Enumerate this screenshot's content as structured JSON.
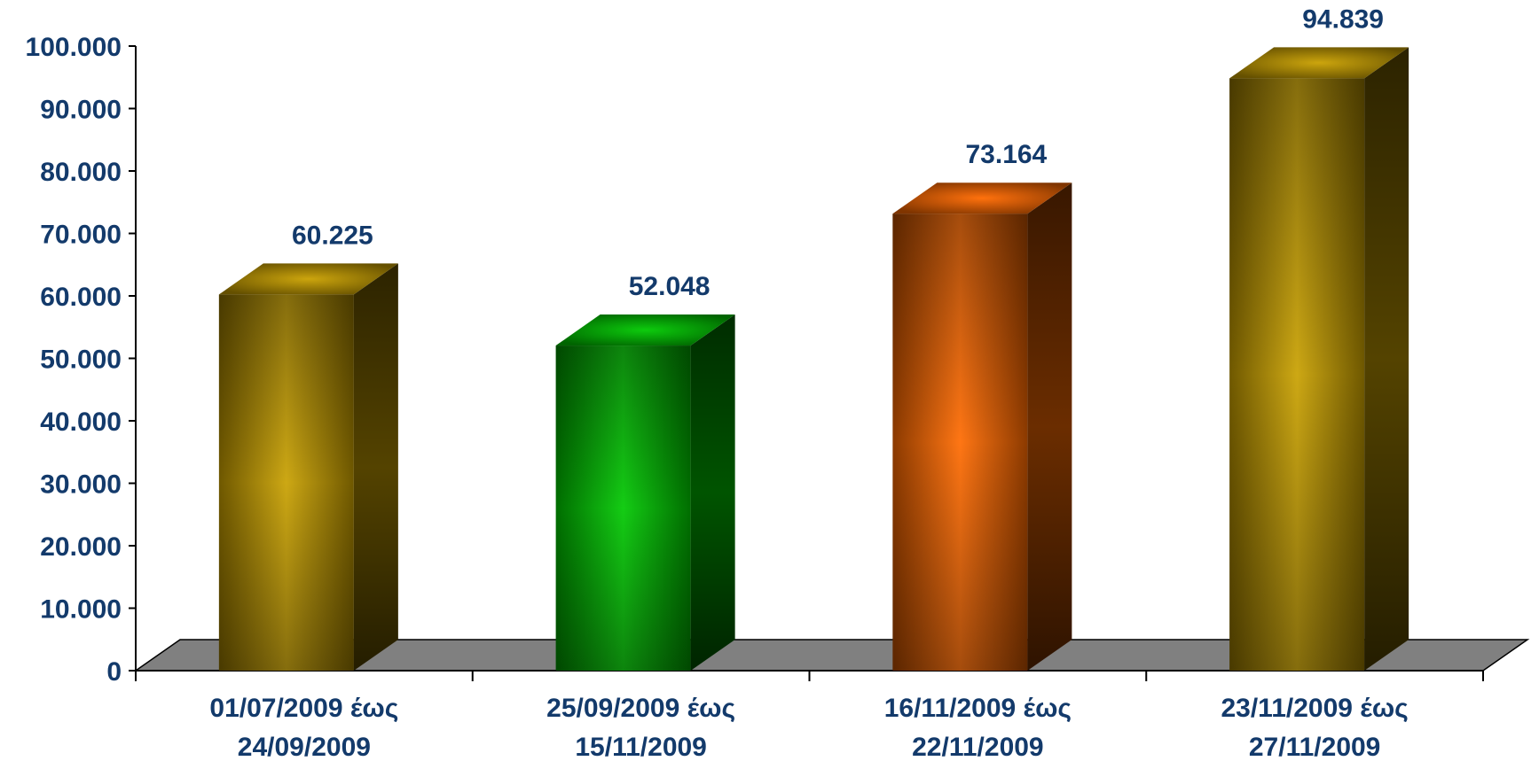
{
  "chart_data": {
    "type": "bar",
    "three_d": true,
    "title": "",
    "xlabel": "",
    "ylabel": "",
    "ylim": [
      0,
      100000
    ],
    "y_ticks": [
      0,
      10000,
      20000,
      30000,
      40000,
      50000,
      60000,
      70000,
      80000,
      90000,
      100000
    ],
    "y_tick_labels": [
      "0",
      "10.000",
      "20.000",
      "30.000",
      "40.000",
      "50.000",
      "60.000",
      "70.000",
      "80.000",
      "90.000",
      "100.000"
    ],
    "grid": false,
    "legend": "none",
    "categories": [
      [
        "01/07/2009 έως",
        "24/09/2009"
      ],
      [
        "25/09/2009 έως",
        "15/11/2009"
      ],
      [
        "16/11/2009 έως",
        "22/11/2009"
      ],
      [
        "23/11/2009 έως",
        "27/11/2009"
      ]
    ],
    "values": [
      60225,
      52048,
      73164,
      94839
    ],
    "value_labels": [
      "60.225",
      "52.048",
      "73.164",
      "94.839"
    ],
    "bar_colors": [
      "#c9a000",
      "#00c800",
      "#ff6a00",
      "#c9a000"
    ]
  },
  "colors": {
    "text": "#133a6b",
    "axis": "#000000",
    "floor": "#808080"
  }
}
